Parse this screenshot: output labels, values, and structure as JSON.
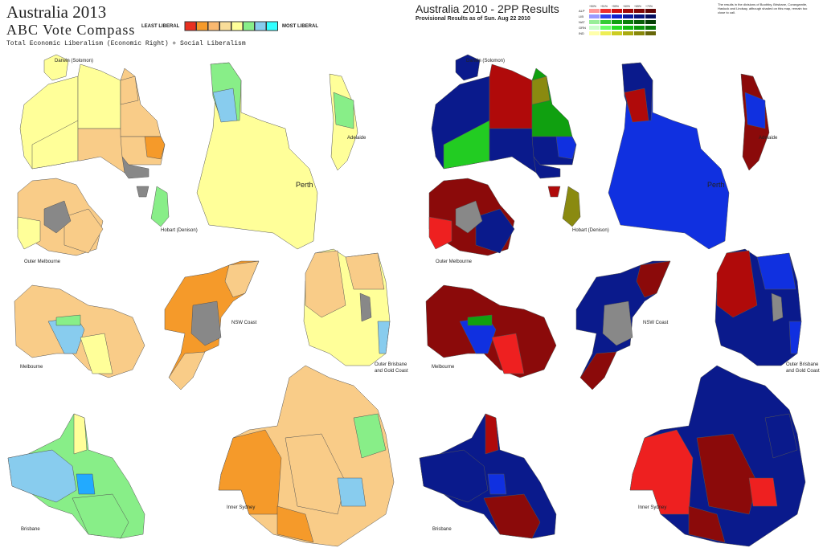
{
  "left_map": {
    "title": "Australia 2013",
    "subtitle": "ABC Vote Compass",
    "caption": "Total Economic Liberalism (Economic Right) + Social Liberalism",
    "legend": {
      "low_label": "LEAST LIBERAL",
      "high_label": "MOST LIBERAL"
    },
    "region_labels": [
      "Darwin (Solomon)",
      "Hobart (Denison)",
      "Perth",
      "Adelaide",
      "Outer Melbourne",
      "NSW Coast",
      "Melbourne",
      "Outer Brisbane and Gold Coast",
      "Brisbane",
      "Inner Sydney"
    ]
  },
  "right_map": {
    "title": "Australia 2010 - 2PP Results",
    "subtitle": "Provisional Results as of Sun. Aug 22 2010",
    "legend": {
      "columns": [
        "+50%",
        "+51%",
        "+55%",
        "+60%",
        "+65%",
        "+70%"
      ],
      "rows": [
        "ALP",
        "LIB",
        "NAT",
        "GRN",
        "IND"
      ]
    },
    "note": "The results in the divisions of Boothby, Brisbane, Corangamite, Hasluck and Lindsay, although shaded on this map, remain too close to call.",
    "region_labels": [
      "Darwin (Solomon)",
      "Hobart (Denison)",
      "Perth",
      "Adelaide",
      "Outer Melbourne",
      "NSW Coast",
      "Melbourne",
      "Outer Brisbane and Gold Coast",
      "Brisbane",
      "Inner Sydney"
    ]
  }
}
